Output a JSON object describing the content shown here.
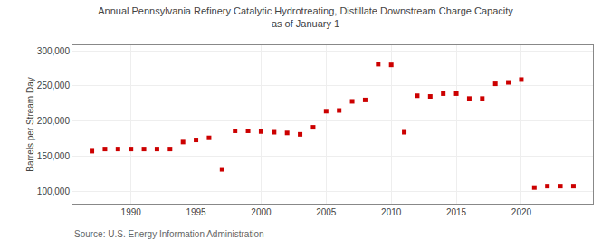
{
  "chart_data": {
    "type": "scatter",
    "title": "Annual Pennsylvania Refinery Catalytic Hydrotreating, Distillate Downstream Charge Capacity",
    "subtitle": "as of January 1",
    "y_label": "Barrels per Stream Day",
    "annotations": [
      "Source: U.S. Energy Information Administration"
    ],
    "x": [
      1987,
      1988,
      1989,
      1990,
      1991,
      1992,
      1993,
      1994,
      1995,
      1996,
      1997,
      1998,
      1999,
      2000,
      2001,
      2002,
      2003,
      2004,
      2005,
      2006,
      2007,
      2008,
      2009,
      2010,
      2011,
      2012,
      2013,
      2014,
      2015,
      2016,
      2017,
      2018,
      2019,
      2020,
      2021,
      2022,
      2023,
      2024
    ],
    "values": [
      157000,
      160000,
      160000,
      160000,
      160000,
      160000,
      160000,
      170000,
      173000,
      176000,
      131000,
      186000,
      186000,
      185000,
      184000,
      183000,
      181000,
      191000,
      214000,
      215000,
      228000,
      230000,
      281000,
      280000,
      184000,
      236000,
      235000,
      239000,
      239000,
      232000,
      232000,
      253000,
      255000,
      259000,
      105000,
      107000,
      107000,
      107000
    ],
    "color": "#cc0000",
    "marker": "square",
    "xlim": [
      1985.5,
      2025.5
    ],
    "xticks": [
      1990,
      1995,
      2000,
      2005,
      2010,
      2015,
      2020
    ],
    "ylim": [
      82000,
      308000
    ],
    "yticks": [
      {
        "value": 100000,
        "label": "100,000"
      },
      {
        "value": 150000,
        "label": "150,000"
      },
      {
        "value": 200000,
        "label": "200,000"
      },
      {
        "value": 250000,
        "label": "250,000"
      },
      {
        "value": 300000,
        "label": "300,000"
      }
    ],
    "grid": true
  }
}
